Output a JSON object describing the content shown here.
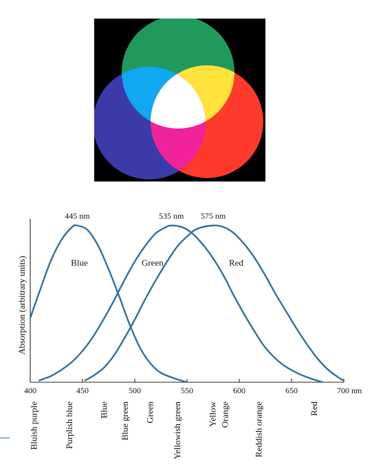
{
  "illustration": {
    "name": "additive-color-mixing",
    "colors": {
      "green": "#1f9a5a",
      "red": "#ff3a2a",
      "blue": "#3a3aa8",
      "cyan": "#10a8f0",
      "yellow": "#ffe23a",
      "magenta": "#f0229a",
      "white": "#ffffff",
      "background": "#000000"
    }
  },
  "chart_data": {
    "type": "line",
    "title": "",
    "xlabel": "",
    "ylabel": "Absorption (arbitrary units)",
    "x_unit": "nm",
    "xlim": [
      400,
      700
    ],
    "ylim": [
      0,
      1
    ],
    "x_ticks": [
      400,
      450,
      500,
      550,
      600,
      650,
      700
    ],
    "x_tick_labels": [
      "400",
      "450",
      "500",
      "550",
      "600",
      "650",
      "700 nm"
    ],
    "grid": false,
    "series": [
      {
        "name": "Blue",
        "peak_label": "445 nm",
        "color": "#2f6f9f",
        "points": [
          [
            400,
            0.41
          ],
          [
            410,
            0.6
          ],
          [
            420,
            0.78
          ],
          [
            430,
            0.91
          ],
          [
            440,
            0.99
          ],
          [
            445,
            1.0
          ],
          [
            455,
            0.97
          ],
          [
            465,
            0.87
          ],
          [
            475,
            0.72
          ],
          [
            485,
            0.55
          ],
          [
            495,
            0.37
          ],
          [
            505,
            0.22
          ],
          [
            515,
            0.12
          ],
          [
            525,
            0.06
          ],
          [
            540,
            0.02
          ],
          [
            550,
            0.0
          ]
        ]
      },
      {
        "name": "Green",
        "peak_label": "535 nm",
        "color": "#2f6f9f",
        "points": [
          [
            408,
            0.01
          ],
          [
            420,
            0.04
          ],
          [
            430,
            0.08
          ],
          [
            440,
            0.13
          ],
          [
            450,
            0.2
          ],
          [
            460,
            0.29
          ],
          [
            470,
            0.4
          ],
          [
            480,
            0.52
          ],
          [
            490,
            0.65
          ],
          [
            500,
            0.77
          ],
          [
            510,
            0.87
          ],
          [
            520,
            0.95
          ],
          [
            530,
            0.99
          ],
          [
            535,
            1.0
          ],
          [
            545,
            0.99
          ],
          [
            555,
            0.95
          ],
          [
            565,
            0.88
          ],
          [
            575,
            0.79
          ],
          [
            585,
            0.68
          ],
          [
            595,
            0.55
          ],
          [
            605,
            0.43
          ],
          [
            615,
            0.32
          ],
          [
            625,
            0.22
          ],
          [
            640,
            0.12
          ],
          [
            655,
            0.06
          ],
          [
            670,
            0.02
          ],
          [
            680,
            0.0
          ]
        ]
      },
      {
        "name": "Red",
        "peak_label": "575 nm",
        "color": "#2f6f9f",
        "points": [
          [
            452,
            0.01
          ],
          [
            460,
            0.04
          ],
          [
            470,
            0.09
          ],
          [
            480,
            0.17
          ],
          [
            490,
            0.28
          ],
          [
            500,
            0.4
          ],
          [
            510,
            0.53
          ],
          [
            520,
            0.65
          ],
          [
            530,
            0.76
          ],
          [
            540,
            0.86
          ],
          [
            550,
            0.93
          ],
          [
            560,
            0.98
          ],
          [
            575,
            1.0
          ],
          [
            585,
            0.99
          ],
          [
            595,
            0.95
          ],
          [
            605,
            0.88
          ],
          [
            615,
            0.79
          ],
          [
            625,
            0.68
          ],
          [
            635,
            0.56
          ],
          [
            645,
            0.45
          ],
          [
            655,
            0.34
          ],
          [
            665,
            0.24
          ],
          [
            675,
            0.15
          ],
          [
            685,
            0.08
          ],
          [
            695,
            0.03
          ],
          [
            700,
            0.01
          ]
        ]
      }
    ],
    "series_labels": [
      {
        "text": "Blue",
        "x": 447,
        "y": 0.76
      },
      {
        "text": "Green",
        "x": 517,
        "y": 0.76
      },
      {
        "text": "Red",
        "x": 597,
        "y": 0.76
      }
    ],
    "color_names": [
      {
        "text": "Bluish purple",
        "x": 403
      },
      {
        "text": "Purplish blue",
        "x": 437
      },
      {
        "text": "Blue",
        "x": 470
      },
      {
        "text": "Blue green",
        "x": 490
      },
      {
        "text": "Green",
        "x": 514
      },
      {
        "text": "Yellowish green",
        "x": 540
      },
      {
        "text": "Yellow",
        "x": 574
      },
      {
        "text": "Orange",
        "x": 586
      },
      {
        "text": "Reddish orange",
        "x": 618
      },
      {
        "text": "Red",
        "x": 671
      }
    ]
  }
}
